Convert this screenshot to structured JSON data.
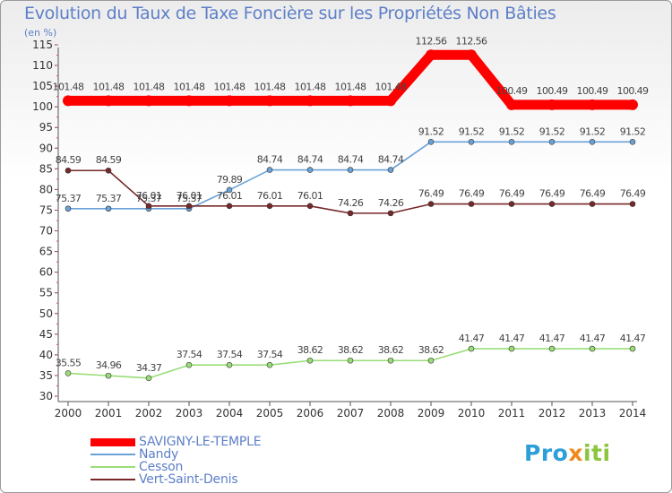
{
  "chart_data": {
    "type": "line",
    "title": "Evolution du Taux de Taxe Foncière sur les Propriétés Non Bâties",
    "ylabel": "(en %)",
    "xlabel": "",
    "ylim": [
      30,
      115
    ],
    "yticks": [
      30,
      35,
      40,
      45,
      50,
      55,
      60,
      65,
      70,
      75,
      80,
      85,
      90,
      95,
      100,
      105,
      110,
      115
    ],
    "x": [
      "2000",
      "2001",
      "2002",
      "2003",
      "2004",
      "2005",
      "2006",
      "2007",
      "2008",
      "2009",
      "2010",
      "2011",
      "2012",
      "2013",
      "2014"
    ],
    "grid": false,
    "series": [
      {
        "name": "SAVIGNY-LE-TEMPLE",
        "color": "#ff0000",
        "values": [
          101.48,
          101.48,
          101.48,
          101.48,
          101.48,
          101.48,
          101.48,
          101.48,
          101.48,
          112.56,
          112.56,
          100.49,
          100.49,
          100.49,
          100.49
        ],
        "labels": [
          "101.48",
          "101.48",
          "101.48",
          "101.48",
          "101.48",
          "101.48",
          "101.48",
          "101.48",
          "101.48",
          "112.56",
          "112.56",
          "100.49",
          "100.49",
          "100.49",
          "100.49"
        ]
      },
      {
        "name": "Nandy",
        "color": "#6aa2d8",
        "values": [
          75.37,
          75.37,
          75.37,
          75.37,
          79.89,
          84.74,
          84.74,
          84.74,
          84.74,
          91.52,
          91.52,
          91.52,
          91.52,
          91.52,
          91.52
        ],
        "labels": [
          "75.37",
          "75.37",
          "75.37",
          "75.37",
          "79.89",
          "84.74",
          "84.74",
          "84.74",
          "84.74",
          "91.52",
          "91.52",
          "91.52",
          "91.52",
          "91.52",
          "91.52"
        ]
      },
      {
        "name": "Cesson",
        "color": "#99dd77",
        "values": [
          35.55,
          34.96,
          34.37,
          37.54,
          37.54,
          37.54,
          38.62,
          38.62,
          38.62,
          38.62,
          41.47,
          41.47,
          41.47,
          41.47,
          41.47
        ],
        "labels": [
          "35.55",
          "34.96",
          "34.37",
          "37.54",
          "37.54",
          "37.54",
          "38.62",
          "38.62",
          "38.62",
          "38.62",
          "41.47",
          "41.47",
          "41.47",
          "41.47",
          "41.47"
        ]
      },
      {
        "name": "Vert-Saint-Denis",
        "color": "#772828",
        "values": [
          84.59,
          84.59,
          76.01,
          76.01,
          76.01,
          76.01,
          76.01,
          74.26,
          74.26,
          76.49,
          76.49,
          76.49,
          76.49,
          76.49,
          76.49
        ],
        "labels": [
          "84.59",
          "84.59",
          "76.01",
          "76.01",
          "76.01",
          "76.01",
          "76.01",
          "74.26",
          "74.26",
          "76.49",
          "76.49",
          "76.49",
          "76.49",
          "76.49",
          "76.49"
        ]
      }
    ]
  },
  "logo": {
    "part1": "Pro",
    "part2": "x",
    "part3": "iti"
  }
}
